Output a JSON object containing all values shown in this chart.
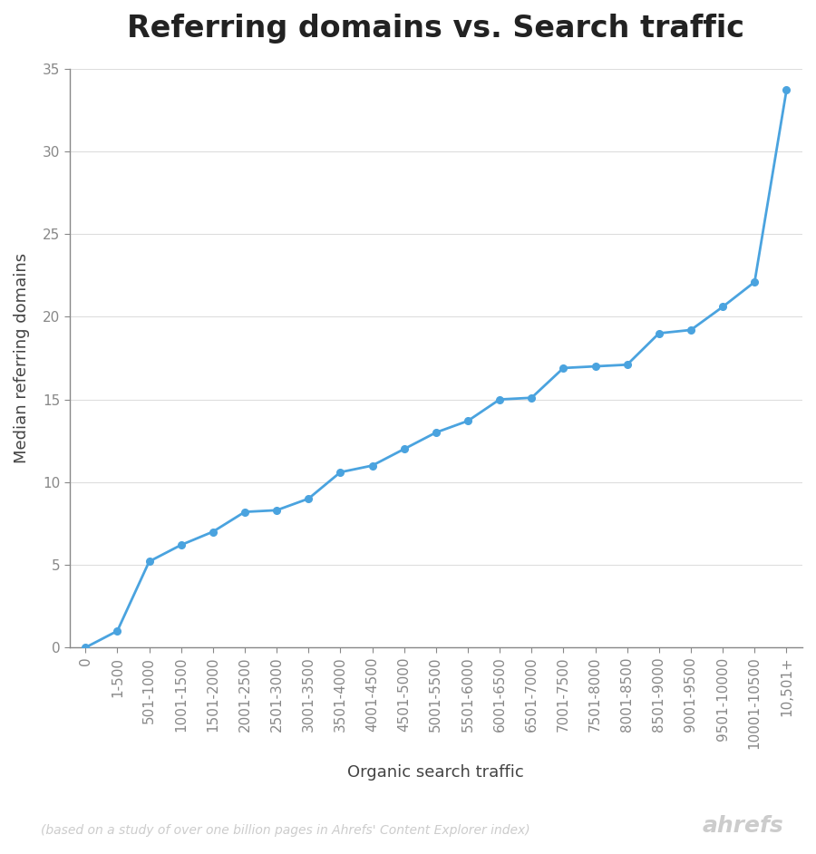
{
  "title": "Referring domains vs. Search traffic",
  "xlabel": "Organic search traffic",
  "ylabel": "Median referring domains",
  "footnote": "(based on a study of over one billion pages in Ahrefs' Content Explorer index)",
  "brand": "ahrefs",
  "x_labels": [
    "0",
    "1-500",
    "501-1000",
    "1001-1500",
    "1501-2000",
    "2001-2500",
    "2501-3000",
    "3001-3500",
    "3501-4000",
    "4001-4500",
    "4501-5000",
    "5001-5500",
    "5501-6000",
    "6001-6500",
    "6501-7000",
    "7001-7500",
    "7501-8000",
    "8001-8500",
    "8501-9000",
    "9001-9500",
    "9501-10000",
    "10001-10500",
    "10,501+"
  ],
  "y_values": [
    0.0,
    1.0,
    5.2,
    6.2,
    7.0,
    8.2,
    8.3,
    9.0,
    10.6,
    11.0,
    12.0,
    13.0,
    13.7,
    15.0,
    15.1,
    16.9,
    17.0,
    17.1,
    19.0,
    19.2,
    20.6,
    22.1,
    33.7
  ],
  "line_color": "#4aa3df",
  "marker_color": "#4aa3df",
  "background_color": "#ffffff",
  "grid_color": "#dddddd",
  "spine_color": "#888888",
  "tick_color": "#888888",
  "title_fontsize": 24,
  "label_fontsize": 13,
  "tick_fontsize": 11,
  "footnote_fontsize": 10,
  "brand_fontsize": 18,
  "ylim": [
    0,
    35
  ],
  "yticks": [
    0,
    5,
    10,
    15,
    20,
    25,
    30,
    35
  ]
}
